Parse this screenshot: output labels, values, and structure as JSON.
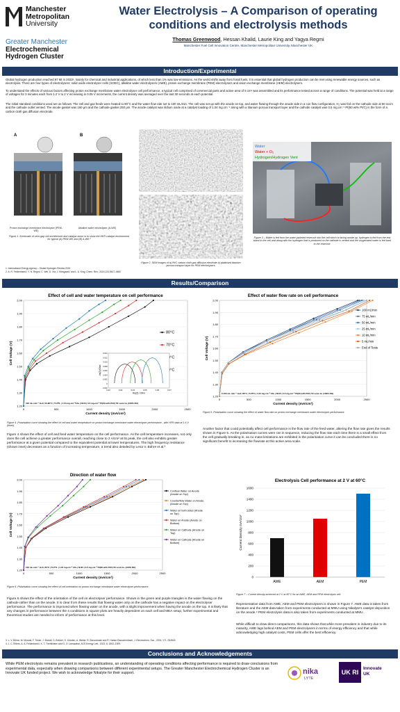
{
  "header": {
    "logo_lines": [
      "Manchester",
      "Metropolitan",
      "University"
    ],
    "cluster_lines": [
      "Greater Manchester",
      "Electrochemical",
      "Hydrogen Cluster"
    ],
    "title_lines": [
      "Water Electrolysis – A Comparison of operating",
      "conditions and electrolysis methods"
    ],
    "author_first": "Thomas Greenwood",
    "authors_rest": ", Hessan Khalid, Laurie King and Yagya Regmi",
    "affiliation": "Manchester Fuel Cell Innovation Centre, Manchester Metropolitan University, Manchester UK"
  },
  "intro": {
    "heading": "Introduction/Experimental",
    "p1": "Global hydrogen production reached 97 Mt in 2023¹, mainly for chemical and industrial applications, of which less than 1% was low-emissions. As the world shifts away from fossil fuels, it is essential that global hydrogen production can be met using renewable energy sources, such as electrolysis. There are four types of electrolysers: solid oxide electrolyser cells (SOEC), alkaline water electrolysers (AWE), proton exchange membrane (PEM) electrolysers and anion exchange membrane (AEM) electrolysers.",
    "p2": "To understand the effects of various factors affecting proton exchange membrane water electrolyser cell performance, a typical cell comprised of commercial parts and active area of 5 cm² was assembled and its performance tested across a range of conditions. The potential was held at a range of voltages for 3 minutes each from 1.2 V to 2 V increasing in 0.05 V increments, the current density was averaged over the last 30 seconds at each potential.",
    "p3": "The initial standard conditions used are as follows: The cell and gas feeds were heated to 80°C and the water flow rate set to 100 mL/min. The cell was set up with the anode on top, and water flowing through the anode side in a con flow configuration, H₂ was fed on the cathode side at 50 sccm and the cathode outlet vented. The anode gasket was 160 μm and the cathode gasket 250 μm. The anode catalyst was iridium oxide at a catalyst loading of 1.04 mg.cm⁻² along with a titanium porous transport layer and the cathode catalyst was 0.5 mg.cm⁻² Pt(60 wt% Pt/C) in the form of a carbon cloth gas diffusion electrode.",
    "fig1_label_a": "A",
    "fig1_label_b": "B",
    "fig1_sub_a": "Proton exchange membrane electrolyser (PEM-WE)",
    "fig1_sub_b": "Alkaline water electrolyser (A-WE)",
    "fig1_caption": "Figure 1. Schematic of zero-gap cell architecture and catalyst zoom in to show the HER catalyst environment for typical (A) PEM-WE and (B) A-WE.²",
    "fig2_caption": "Figure 2. SEM images of a) Pt/C carbon cloth gas diffusion electrode b) platinised titanium porous transport layer for PEM electrolysers.",
    "fig3_legend": [
      "Water",
      "Water + O₂",
      "Hydrogen/Hydrogen Vent"
    ],
    "fig3_caption": "Figure 3 – Water is fed from the water-jacketed reservoir into the cell which is facing anode up, hydrogen is fed from the test stand to the cell and along with the hydrogen that is produced on the cathode is vented and the oxygenated water is fed back to the reservoir.",
    "refs": [
      "1. International Energy Agency – Global Hydrogen Review 2024",
      "2. A. R. Feidenhans'l, Y. N. Regmi, C. Wei, D. Xia, J. Kibsgaard, and L. A. King, Chem. Rev., 2024,124,5617–5667"
    ]
  },
  "results": {
    "heading": "Results/Comparison",
    "fig4_caption": "Figure 4 -Polarisation curve showing the effect of cell and water temperature on proton exchange membrane water electrolyser performance , with HFR data at 1.6 V (inset).",
    "text4": "Figure 4 shows the effect of cell and feed water temperature on the cell performance. As the cell temperature increases, not only does the cell achieve a greater performance overall, reaching close to 2 A/cm² at its peak, the cell also exhibits greater performance at a given potential compared to the equivalent potential at lower temperatures. The high frequency resistance (shown inset) decreases as a function of increasing temperature, a trend also detailed by Lena V. Bühre et al.³",
    "fig5_caption": "Figure 5 -Polarisation curve showing the effect of water flow rate on proton exchange membrane water electrolyser performance.",
    "text5": "Another factor that could potentially affect cell performance is the flow rate of the feed water, altering the flow rate gives the results shown in Figure 5. As the polarisation curves were ran in sequence, reducing the flow rate each time there is a small effect from the cell gradually breaking in, as no mass limitations are exhibited in the polarisation curve it can be concluded there is no significant benefit to increasing the flowrate at this active area scale.",
    "fig6_caption": "Figure 6 -Polarisation curve showing the effect of cell orientation on proton exchange membrane water electrolyser performance.",
    "text6": "Figure 6 shows the effect of the orientation of the cell on electrolyser performance. Shown in the green and purple triangles is the water flowing on the cathode rather than on the anode. It is clear from these results that flowing water only on the cathode has a negative impact on the electrolyser performance. The performance is improved when flowing water on the anode, with a slight improvement when having the anode on the top. It is likely that any changes in performance between the 4 conditions in square plots are heavily dependent on each cell and MEA setup, further experimental and theoretical studies are needed to inform of performance at this level.",
    "fig7_caption": "Figure 7 – Current density achieved at 2 V at 60°C for an AWE, AEM and PEM electrolysis cell.",
    "text7a": "Representative data from AWE, AEM and PEM electrolysers is shown in Figure 7. AWE data is taken from literature and the AEM data taken from experiments conducted at MMU using Nikalyte's catalyst deposition on the anode.⁴ PEM electrolysis data is also taken from experiments conducted at MMU.",
    "text7b": "While difficult to draw direct comparisons, this data shows that while more prevalent in industry due to its maturity, AWE lags behind AEM and PEM electrolysers in terms of energy efficiency and that while acknowledging high catalyst costs, PEM cells offer the best efficiency.",
    "refs": [
      "3. L. V. Bühre, M. Mourali, F. Trinke, J. Brandt, D. Brinker, G. Kürsten, A. Weber, R. Bonczewski and R. Hanke-Rauschenbach, J. Electrochem. Soc., 2024, 171, 054518.",
      "4. J. C. Ehlers, A. A. Feidenhans'l, K. T. Therkildsen and G. O. Larrazabal, ACS Energy Lett., 2023, 8, 1502–1509."
    ]
  },
  "conclusions": {
    "heading": "Conclusions and Acknowledgements",
    "text": "While PEM electrolysis remains prevalent in research publications, an understanding of operating conditions affecting performance is required to draw conclusions from experimental data, especially when drawing comparisons between different experimental setups. The Greater Manchester Electrochemical Hydrogen Cluster is an Innovate UK funded project. We wish to acknowledge Nikalyte for their support.",
    "nika_logo": "nika",
    "nika_sub": "LYTE",
    "ukri_logo": "UK RI",
    "innovate_lines": [
      "Innovate",
      "UK"
    ]
  },
  "colors": {
    "banner": "#1f3a63",
    "title": "#1f3a63",
    "cluster": "#2e75b6"
  },
  "chart_data": [
    {
      "type": "line",
      "title": "Effect of cell and water temperature on cell performance",
      "xlabel": "Current density (mA/cm²)",
      "ylabel": "Cell Voltage (V)",
      "xlim": [
        0,
        2500
      ],
      "ylim": [
        1.2,
        2.0
      ],
      "xticks": [
        "0",
        "500",
        "1000",
        "1500",
        "2000",
        "2500"
      ],
      "yticks": [
        "1.20",
        "1.30",
        "1.40",
        "1.50",
        "1.60",
        "1.70",
        "1.80",
        "1.90",
        "2.00"
      ],
      "annotation": "100 mL.min⁻¹ H₂O, 50-80°C | Ti-PTL | 1.04 mg.cm⁻²IrOₓ | N115 | 0.5 mg.cm⁻² Pt(60 wt% Pt/C) 50 sccm H₂ (100% RH)",
      "legend": "right",
      "series": [
        {
          "name": "80°C",
          "color": "#111111",
          "x": [
            0,
            30,
            100,
            200,
            400,
            700,
            1000,
            1300,
            1600,
            1850,
            1980
          ],
          "y": [
            1.2,
            1.4,
            1.47,
            1.52,
            1.58,
            1.65,
            1.72,
            1.8,
            1.88,
            1.95,
            2.0
          ]
        },
        {
          "name": "70°C",
          "color": "#d62728",
          "x": [
            0,
            25,
            90,
            180,
            350,
            600,
            900,
            1150,
            1400,
            1600,
            1720
          ],
          "y": [
            1.2,
            1.41,
            1.48,
            1.54,
            1.6,
            1.68,
            1.76,
            1.83,
            1.9,
            1.96,
            2.0
          ]
        },
        {
          "name": "60°C",
          "color": "#2ca02c",
          "x": [
            0,
            20,
            80,
            160,
            300,
            520,
            780,
            1000,
            1200,
            1380,
            1480
          ],
          "y": [
            1.2,
            1.42,
            1.49,
            1.55,
            1.62,
            1.7,
            1.78,
            1.85,
            1.91,
            1.97,
            2.0
          ]
        },
        {
          "name": "50°C",
          "color": "#1f77b4",
          "x": [
            0,
            15,
            70,
            140,
            260,
            450,
            650,
            850,
            1000,
            1150,
            1250
          ],
          "y": [
            1.2,
            1.43,
            1.5,
            1.56,
            1.63,
            1.71,
            1.79,
            1.86,
            1.92,
            1.97,
            2.0
          ]
        }
      ],
      "inset": {
        "xlabel": "Re(Z) / Ohm",
        "ylabel": "-Im(Z)/Ohm",
        "xlim": [
          0.02,
          0.07
        ],
        "ylim": [
          -0.002,
          0.014
        ],
        "xticks": [
          "0.02",
          "0.03",
          "0.04",
          "0.05",
          "0.06",
          "0.07"
        ],
        "yticks": [
          "-0.002",
          "0",
          "0.002",
          "0.004",
          "0.006",
          "0.008",
          "0.010",
          "0.012",
          "0.014"
        ]
      }
    },
    {
      "type": "line",
      "title": "Effect of water flow rate on cell performance",
      "xlabel": "Current density (mA/cm²)",
      "ylabel": "Cell Voltage (V)",
      "xlim": [
        0,
        2500
      ],
      "ylim": [
        1.2,
        2.0
      ],
      "xticks": [
        "0",
        "500",
        "1000",
        "1500",
        "2000",
        "2500"
      ],
      "yticks": [
        "1.20",
        "1.30",
        "1.40",
        "1.50",
        "1.60",
        "1.70",
        "1.80",
        "1.90",
        "2.00"
      ],
      "annotation": "5-100 mL.min⁻¹ H₂O, 80°C | Ti-PTL | 1.04 mg.cm⁻² IrOₓ | N115 | 0.5 mg.cm⁻² Pt(60 wt% Pt/C) 50 sccm H₂ (100% RH)",
      "legend": "right",
      "series": [
        {
          "name": "100 mL/min",
          "color": "#1f3a63",
          "x": [
            0,
            40,
            150,
            400,
            800,
            1200,
            1600,
            2000,
            2350
          ],
          "y": [
            1.2,
            1.4,
            1.48,
            1.57,
            1.67,
            1.76,
            1.85,
            1.93,
            2.0
          ]
        },
        {
          "name": "75 mL/min",
          "color": "#4a6fa5",
          "x": [
            0,
            40,
            150,
            400,
            800,
            1200,
            1600,
            2000,
            2380
          ],
          "y": [
            1.2,
            1.4,
            1.48,
            1.57,
            1.66,
            1.75,
            1.84,
            1.92,
            2.0
          ]
        },
        {
          "name": "50 mL/min",
          "color": "#2e75b6",
          "x": [
            0,
            40,
            150,
            400,
            800,
            1200,
            1650,
            2050,
            2420
          ],
          "y": [
            1.2,
            1.4,
            1.48,
            1.56,
            1.66,
            1.75,
            1.84,
            1.92,
            2.0
          ]
        },
        {
          "name": "25 mL/min",
          "color": "#9dc3e6",
          "x": [
            0,
            40,
            150,
            420,
            820,
            1250,
            1700,
            2100,
            2450
          ],
          "y": [
            1.2,
            1.4,
            1.48,
            1.56,
            1.65,
            1.74,
            1.83,
            1.91,
            2.0
          ]
        },
        {
          "name": "10 mL/min",
          "color": "#ed7d31",
          "x": [
            0,
            45,
            160,
            450,
            900,
            1350,
            1800,
            2250,
            2600
          ],
          "y": [
            1.2,
            1.39,
            1.47,
            1.55,
            1.64,
            1.73,
            1.82,
            1.91,
            2.0
          ]
        },
        {
          "name": "5 mL/min",
          "color": "#c55a11",
          "x": [
            0,
            45,
            160,
            430,
            860,
            1300,
            1750,
            2200,
            2550
          ],
          "y": [
            1.2,
            1.39,
            1.47,
            1.55,
            1.65,
            1.74,
            1.83,
            1.91,
            2.0
          ]
        },
        {
          "name": "End of Tests",
          "color": "#a5a5a5",
          "x": [
            0,
            40,
            150,
            400,
            800,
            1250,
            1700,
            2150,
            2500
          ],
          "y": [
            1.2,
            1.4,
            1.48,
            1.56,
            1.66,
            1.75,
            1.84,
            1.92,
            2.0
          ]
        }
      ]
    },
    {
      "type": "line",
      "title": "Direction of water flow",
      "xlabel": "Current density (mA/cm²)",
      "ylabel": "Cell Voltage (V)",
      "xlim": [
        0,
        2500
      ],
      "ylim": [
        1.2,
        2.0
      ],
      "xticks": [
        "0",
        "500",
        "1000",
        "1500",
        "2000",
        "2500"
      ],
      "yticks": [
        "1.20",
        "1.30",
        "1.40",
        "1.50",
        "1.60",
        "1.70",
        "1.80",
        "1.90",
        "2.00"
      ],
      "annotation": "100 mL.min⁻¹ H₂O, 80°C | Ti-PTL | 1.04 mg.cm⁻² IrOₓ | N115 | 0.5 mg.cm⁻² Pt(60 wt% Pt/C) 50 sccm H₂ (100% RH)",
      "legend": "right",
      "series": [
        {
          "name": "Conflow Water on Anode (Anode on Top)",
          "color": "#111111",
          "x": [
            0,
            40,
            150,
            400,
            800,
            1200,
            1600,
            1950,
            2200
          ],
          "y": [
            1.2,
            1.4,
            1.48,
            1.57,
            1.67,
            1.76,
            1.85,
            1.94,
            2.0
          ]
        },
        {
          "name": "Counterflow Water on Anode (Anode on Top)",
          "color": "#ed7d31",
          "x": [
            0,
            40,
            140,
            380,
            760,
            1150,
            1550,
            1900,
            2150
          ],
          "y": [
            1.2,
            1.4,
            1.48,
            1.57,
            1.67,
            1.76,
            1.85,
            1.94,
            2.0
          ]
        },
        {
          "name": "Water on both sides (Anode on Top)",
          "color": "#2e75b6",
          "x": [
            0,
            40,
            140,
            370,
            740,
            1120,
            1500,
            1850,
            2080
          ],
          "y": [
            1.2,
            1.4,
            1.48,
            1.57,
            1.67,
            1.76,
            1.85,
            1.94,
            2.0
          ]
        },
        {
          "name": "Water on Anode (Anode on Bottom)",
          "color": "#d62728",
          "x": [
            0,
            38,
            135,
            360,
            720,
            1080,
            1450,
            1800,
            2020
          ],
          "y": [
            1.2,
            1.4,
            1.48,
            1.57,
            1.67,
            1.76,
            1.85,
            1.94,
            2.0
          ]
        },
        {
          "name": "Water on Cathode (Anode on Top)",
          "color": "#2ca02c",
          "x": [
            0,
            25,
            90,
            250,
            480,
            700,
            900,
            1080,
            1200
          ],
          "y": [
            1.2,
            1.41,
            1.49,
            1.58,
            1.68,
            1.77,
            1.86,
            1.94,
            2.0
          ]
        },
        {
          "name": "Water on Cathode (Anode on Bottom)",
          "color": "#7030a0",
          "x": [
            0,
            22,
            80,
            220,
            420,
            620,
            800,
            960,
            1060
          ],
          "y": [
            1.2,
            1.41,
            1.49,
            1.58,
            1.68,
            1.77,
            1.86,
            1.94,
            2.0
          ]
        }
      ]
    },
    {
      "type": "bar",
      "title": "Electrolysis Cell performance at 2 V at 60°C",
      "ylabel": "Current Density mA/cm²",
      "ylim": [
        0,
        1600
      ],
      "yticks": [
        "0",
        "200",
        "400",
        "600",
        "800",
        "1000",
        "1200",
        "1400",
        "1600"
      ],
      "categories": [
        "AWE",
        "AEM",
        "PEM"
      ],
      "values": [
        700,
        1050,
        1500
      ],
      "colors": [
        "#111111",
        "#e00000",
        "#0070c0"
      ]
    }
  ]
}
